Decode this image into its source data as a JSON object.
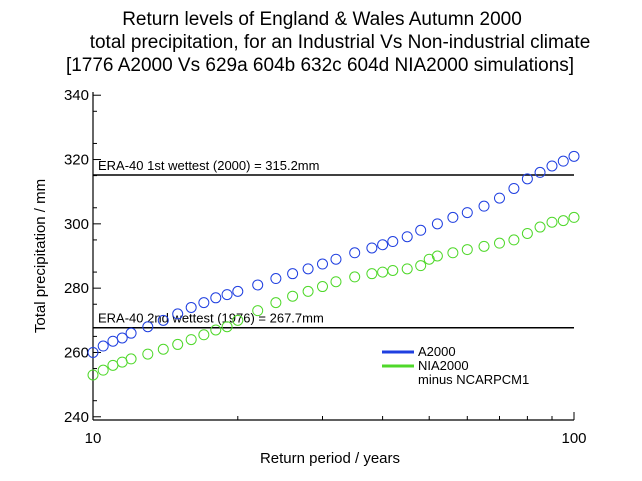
{
  "chart_data": {
    "type": "scatter",
    "title": [
      "Return levels of England & Wales Autumn 2000",
      "total precipitation, for an Industrial Vs Non-industrial climate",
      "[1776 A2000 Vs 629a 604b 632c 604d NIA2000 simulations]"
    ],
    "xlabel": "Return period / years",
    "ylabel": "Total precipitation / mm",
    "xscale": "log",
    "xlim": [
      10,
      100
    ],
    "ylim": [
      239,
      341
    ],
    "xticks": [
      {
        "value": 10,
        "label": "10"
      },
      {
        "value": 100,
        "label": "100"
      }
    ],
    "yticks": [
      {
        "value": 240,
        "label": "240"
      },
      {
        "value": 260,
        "label": "260"
      },
      {
        "value": 280,
        "label": "280"
      },
      {
        "value": 300,
        "label": "300"
      },
      {
        "value": 320,
        "label": "320"
      },
      {
        "value": 340,
        "label": "340"
      }
    ],
    "reference_lines": [
      {
        "y": 315.2,
        "label": "ERA-40 1st wettest (2000) = 315.2mm",
        "color": "#000000"
      },
      {
        "y": 267.7,
        "label": "ERA-40 2nd wettest (1976) = 267.7mm",
        "color": "#000000"
      }
    ],
    "legend": {
      "position": "bottom-right",
      "entries": [
        {
          "label": "A2000",
          "color": "#1f3fe0"
        },
        {
          "label": "NIA2000",
          "color": "#4fd82a"
        },
        {
          "label": "minus NCARPCM1",
          "color": "#4fd82a"
        }
      ]
    },
    "series": [
      {
        "name": "A2000",
        "color": "#1f3fe0",
        "marker": "open-circle",
        "x": [
          10.0,
          10.5,
          11.0,
          11.5,
          12.0,
          13.0,
          14.0,
          15.0,
          16.0,
          17.0,
          18.0,
          19.0,
          20.0,
          22.0,
          24.0,
          26.0,
          28.0,
          30.0,
          32.0,
          35.0,
          38.0,
          40.0,
          42.0,
          45.0,
          48.0,
          52.0,
          56.0,
          60.0,
          65.0,
          70.0,
          75.0,
          80.0,
          85.0,
          90.0,
          95.0,
          100.0
        ],
        "y": [
          260,
          262,
          263.5,
          264.5,
          266,
          268,
          270,
          272,
          274,
          275.5,
          277,
          278,
          279,
          281,
          283,
          284.5,
          286,
          287.5,
          289,
          291,
          292.5,
          293.5,
          294.5,
          296,
          298,
          300,
          302,
          303.5,
          305.5,
          308,
          311,
          314,
          316,
          318,
          319.5,
          321
        ]
      },
      {
        "name": "NIA2000",
        "color": "#4fd82a",
        "marker": "open-circle",
        "x": [
          10.0,
          10.5,
          11.0,
          11.5,
          12.0,
          13.0,
          14.0,
          15.0,
          16.0,
          17.0,
          18.0,
          19.0,
          20.0,
          22.0,
          24.0,
          26.0,
          28.0,
          30.0,
          32.0,
          35.0,
          38.0,
          40.0,
          42.0,
          45.0,
          48.0,
          50.0,
          52.0,
          56.0,
          60.0,
          65.0,
          70.0,
          75.0,
          80.0,
          85.0,
          90.0,
          95.0,
          100.0
        ],
        "y": [
          253,
          254.5,
          256,
          257,
          258,
          259.5,
          261,
          262.5,
          264,
          265.5,
          267,
          268,
          270,
          273,
          275.5,
          277.5,
          279,
          280.5,
          282,
          283.5,
          284.5,
          285,
          285.5,
          286,
          287,
          289,
          290,
          291,
          292,
          293,
          294,
          295,
          297,
          299,
          300.5,
          301,
          302
        ]
      }
    ]
  }
}
